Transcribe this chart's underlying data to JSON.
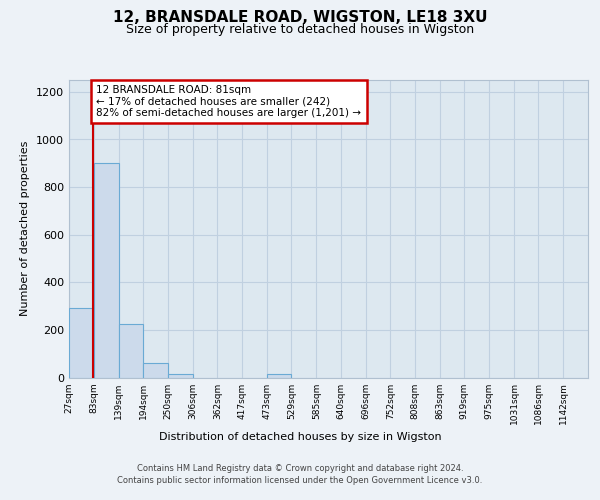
{
  "title_line1": "12, BRANSDALE ROAD, WIGSTON, LE18 3XU",
  "title_line2": "Size of property relative to detached houses in Wigston",
  "xlabel": "Distribution of detached houses by size in Wigston",
  "ylabel": "Number of detached properties",
  "bins": [
    "27sqm",
    "83sqm",
    "139sqm",
    "194sqm",
    "250sqm",
    "306sqm",
    "362sqm",
    "417sqm",
    "473sqm",
    "529sqm",
    "585sqm",
    "640sqm",
    "696sqm",
    "752sqm",
    "808sqm",
    "863sqm",
    "919sqm",
    "975sqm",
    "1031sqm",
    "1086sqm",
    "1142sqm"
  ],
  "bin_edges": [
    27,
    83,
    139,
    194,
    250,
    306,
    362,
    417,
    473,
    529,
    585,
    640,
    696,
    752,
    808,
    863,
    919,
    975,
    1031,
    1086,
    1142
  ],
  "values": [
    290,
    900,
    225,
    60,
    15,
    0,
    0,
    0,
    15,
    0,
    0,
    0,
    0,
    0,
    0,
    0,
    0,
    0,
    0,
    0,
    0
  ],
  "bar_color": "#ccdaeb",
  "bar_edge_color": "#6aaad4",
  "property_size": 81,
  "annotation_text": "12 BRANSDALE ROAD: 81sqm\n← 17% of detached houses are smaller (242)\n82% of semi-detached houses are larger (1,201) →",
  "annotation_box_color": "#ffffff",
  "annotation_box_edge": "#cc0000",
  "red_line_color": "#cc0000",
  "ylim": [
    0,
    1250
  ],
  "yticks": [
    0,
    200,
    400,
    600,
    800,
    1000,
    1200
  ],
  "footer1": "Contains HM Land Registry data © Crown copyright and database right 2024.",
  "footer2": "Contains public sector information licensed under the Open Government Licence v3.0.",
  "bg_color": "#edf2f7",
  "plot_bg_color": "#dde8f0",
  "grid_color": "#c0d0e0"
}
